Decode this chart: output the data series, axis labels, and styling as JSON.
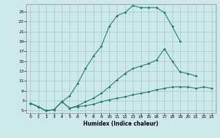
{
  "xlabel": "Humidex (Indice chaleur)",
  "bg_color": "#cde8e8",
  "line_color": "#1a7a6e",
  "grid_color": "#a0c8c8",
  "xlim": [
    -0.5,
    23.5
  ],
  "ylim": [
    4.5,
    26.5
  ],
  "xticks": [
    0,
    1,
    2,
    3,
    4,
    5,
    6,
    7,
    8,
    9,
    10,
    11,
    12,
    13,
    14,
    15,
    16,
    17,
    18,
    19,
    20,
    21,
    22,
    23
  ],
  "yticks": [
    5,
    7,
    9,
    11,
    13,
    15,
    17,
    19,
    21,
    23,
    25
  ],
  "line1_x": [
    0,
    1,
    2,
    3,
    4,
    5,
    6,
    7,
    8,
    9,
    10,
    11,
    12,
    13,
    14,
    15,
    16,
    17,
    18,
    19,
    20,
    21,
    22,
    23
  ],
  "line1_y": [
    6.5,
    5.8,
    5.0,
    5.2,
    6.8,
    5.5,
    5.8,
    6.0,
    6.3,
    6.8,
    7.2,
    7.5,
    7.8,
    8.2,
    8.5,
    8.8,
    9.2,
    9.5,
    9.8,
    9.8,
    9.8,
    9.5,
    9.8,
    9.5
  ],
  "line2_x": [
    0,
    1,
    2,
    3,
    4,
    5,
    6,
    7,
    8,
    9,
    10,
    11,
    12,
    13,
    14,
    15,
    16,
    17,
    18,
    19,
    20,
    21,
    22,
    23
  ],
  "line2_y": [
    6.5,
    5.8,
    5.0,
    5.2,
    6.8,
    5.5,
    6.0,
    6.8,
    7.5,
    8.5,
    9.8,
    11.2,
    12.5,
    13.5,
    14.0,
    14.5,
    15.2,
    17.5,
    15.0,
    12.8,
    12.5,
    12.0,
    null,
    null
  ],
  "line3_x": [
    0,
    1,
    2,
    3,
    4,
    5,
    6,
    7,
    8,
    9,
    10,
    11,
    12,
    13,
    14,
    15,
    16,
    17,
    18,
    19,
    20,
    21,
    22,
    23
  ],
  "line3_y": [
    6.5,
    5.8,
    5.0,
    5.2,
    6.8,
    8.0,
    10.5,
    13.5,
    16.0,
    18.0,
    22.0,
    24.2,
    24.8,
    26.2,
    25.8,
    25.8,
    25.8,
    24.8,
    22.0,
    19.0,
    null,
    null,
    null,
    null
  ]
}
